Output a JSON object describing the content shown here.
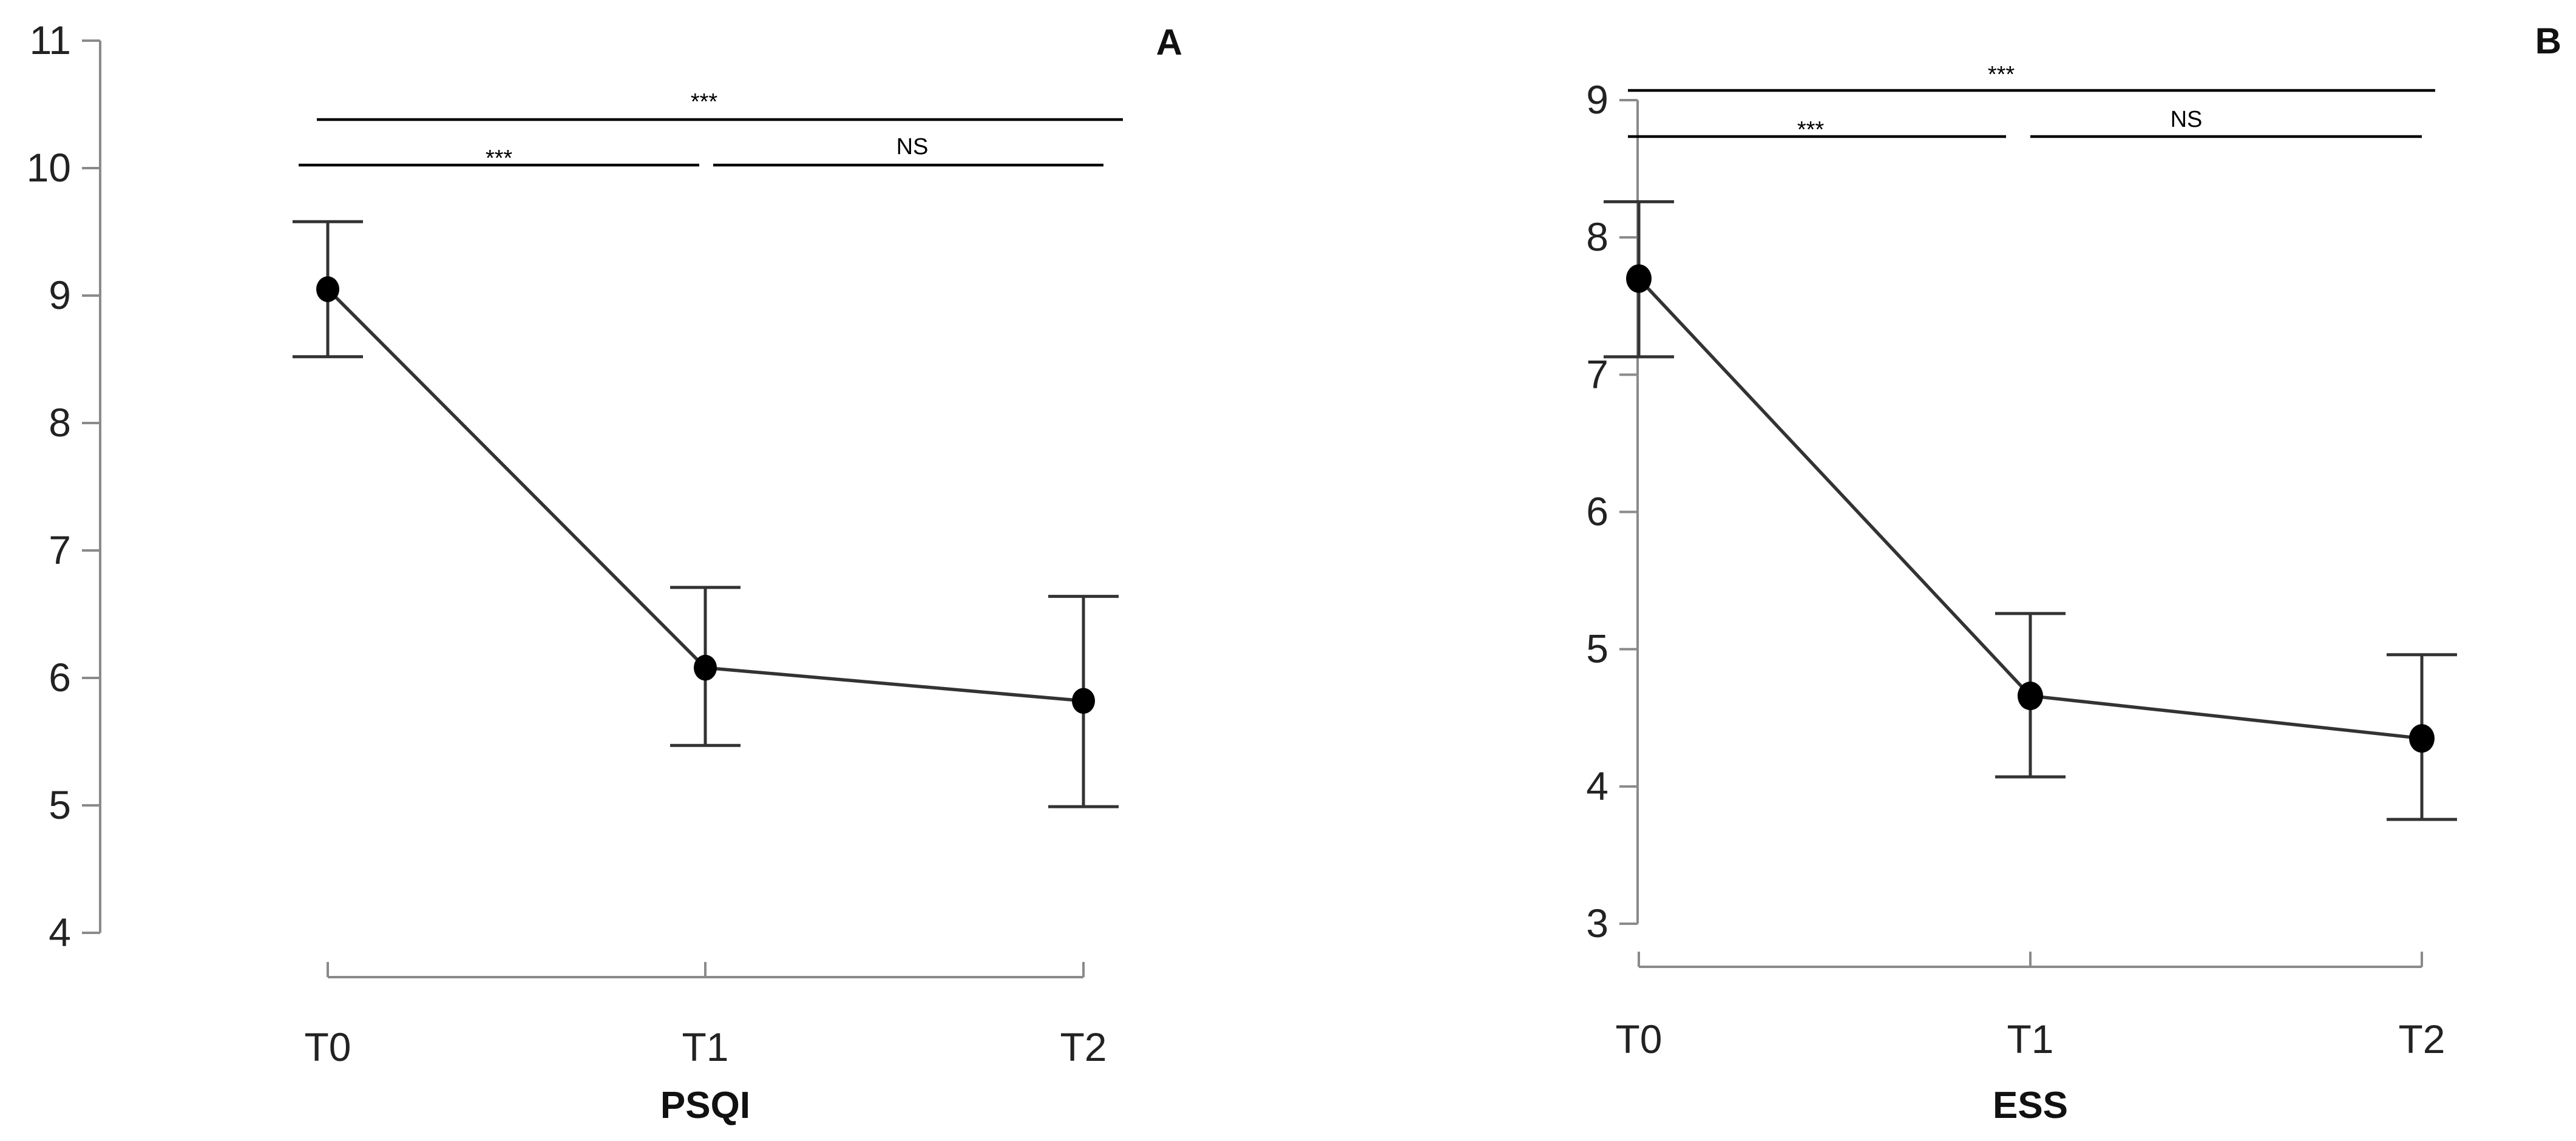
{
  "chart_data": [
    {
      "type": "line",
      "panel_label": "A",
      "xlabel": "PSQI",
      "ylabel": "",
      "categories": [
        "T0",
        "T1",
        "T2"
      ],
      "ylim": [
        4,
        11
      ],
      "yticks": [
        "4",
        "5",
        "6",
        "7",
        "8",
        "9",
        "10",
        "11"
      ],
      "series": [
        {
          "name": "PSQI",
          "values": [
            9.05,
            6.08,
            5.82
          ],
          "err_low": [
            8.52,
            5.47,
            4.99
          ],
          "err_high": [
            9.58,
            6.71,
            6.64
          ]
        }
      ],
      "comparisons": [
        {
          "from": "T0",
          "to": "T2",
          "label": "***"
        },
        {
          "from": "T0",
          "to": "T1",
          "label": "***"
        },
        {
          "from": "T1",
          "to": "T2",
          "label": "NS"
        }
      ]
    },
    {
      "type": "line",
      "panel_label": "B",
      "xlabel": "ESS",
      "ylabel": "",
      "categories": [
        "T0",
        "T1",
        "T2"
      ],
      "ylim": [
        3,
        9
      ],
      "yticks": [
        "3",
        "4",
        "5",
        "6",
        "7",
        "8",
        "9"
      ],
      "series": [
        {
          "name": "ESS",
          "values": [
            7.7,
            4.66,
            4.35
          ],
          "err_low": [
            7.13,
            4.07,
            3.76
          ],
          "err_high": [
            8.26,
            5.26,
            4.96
          ]
        }
      ],
      "comparisons": [
        {
          "from": "T0",
          "to": "T2",
          "label": "***"
        },
        {
          "from": "T0",
          "to": "T1",
          "label": "***"
        },
        {
          "from": "T1",
          "to": "T2",
          "label": "NS"
        }
      ]
    }
  ]
}
